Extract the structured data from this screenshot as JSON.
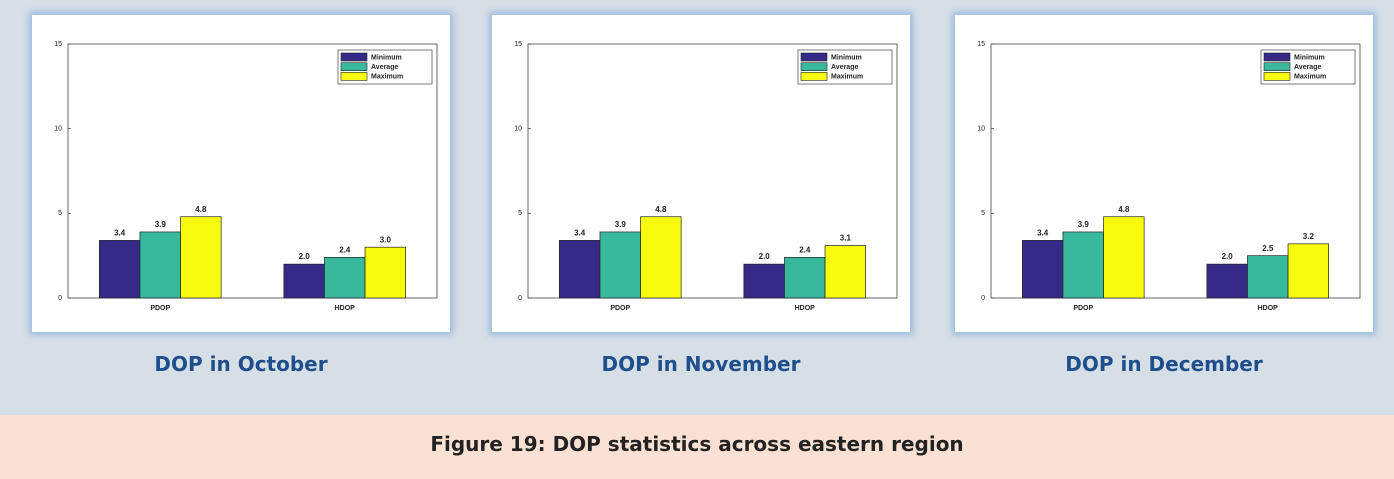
{
  "chart_data": [
    {
      "type": "bar",
      "title": "DOP in October",
      "categories": [
        "PDOP",
        "HDOP"
      ],
      "series": [
        {
          "name": "Minimum",
          "color": "#352a87",
          "values": [
            3.4,
            2.0
          ],
          "value_labels": [
            "3.4",
            "2.0"
          ]
        },
        {
          "name": "Average",
          "color": "#38b99e",
          "values": [
            3.9,
            2.4
          ],
          "value_labels": [
            "3.9",
            "2.4"
          ]
        },
        {
          "name": "Maximum",
          "color": "#f9fb0e",
          "values": [
            4.8,
            3.0
          ],
          "value_labels": [
            "4.8",
            "3.0"
          ]
        }
      ],
      "ylim": [
        0,
        15
      ],
      "yticks": [
        0,
        5,
        10,
        15
      ],
      "legend": "upper right"
    },
    {
      "type": "bar",
      "title": "DOP in November",
      "categories": [
        "PDOP",
        "HDOP"
      ],
      "series": [
        {
          "name": "Minimum",
          "color": "#352a87",
          "values": [
            3.4,
            2.0
          ],
          "value_labels": [
            "3.4",
            "2.0"
          ]
        },
        {
          "name": "Average",
          "color": "#38b99e",
          "values": [
            3.9,
            2.4
          ],
          "value_labels": [
            "3.9",
            "2.4"
          ]
        },
        {
          "name": "Maximum",
          "color": "#f9fb0e",
          "values": [
            4.8,
            3.1
          ],
          "value_labels": [
            "4.8",
            "3.1"
          ]
        }
      ],
      "ylim": [
        0,
        15
      ],
      "yticks": [
        0,
        5,
        10,
        15
      ],
      "legend": "upper right"
    },
    {
      "type": "bar",
      "title": "DOP in December",
      "categories": [
        "PDOP",
        "HDOP"
      ],
      "series": [
        {
          "name": "Minimum",
          "color": "#352a87",
          "values": [
            3.4,
            2.0
          ],
          "value_labels": [
            "3.4",
            "2.0"
          ]
        },
        {
          "name": "Average",
          "color": "#38b99e",
          "values": [
            3.9,
            2.5
          ],
          "value_labels": [
            "3.9",
            "2.5"
          ]
        },
        {
          "name": "Maximum",
          "color": "#f9fb0e",
          "values": [
            4.8,
            3.2
          ],
          "value_labels": [
            "4.8",
            "3.2"
          ]
        }
      ],
      "ylim": [
        0,
        15
      ],
      "yticks": [
        0,
        5,
        10,
        15
      ],
      "legend": "upper right"
    }
  ],
  "figure_caption": "Figure 19: DOP statistics across eastern region"
}
